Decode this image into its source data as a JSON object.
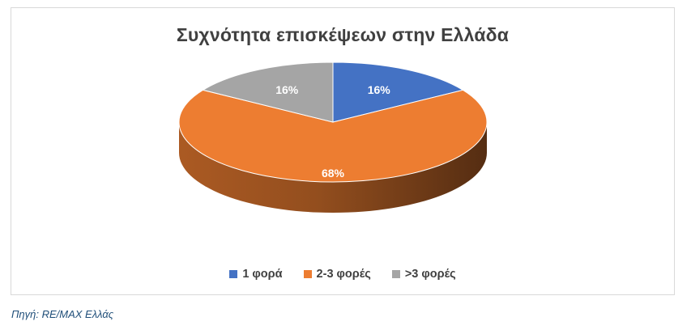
{
  "chart_data": {
    "type": "pie",
    "title": "Συχνότητα επισκέψεων στην Ελλάδα",
    "categories": [
      "1 φορά",
      "2-3 φορές",
      ">3 φορές"
    ],
    "values": [
      16,
      68,
      16
    ],
    "labels": [
      "16%",
      "68%",
      "16%"
    ],
    "colors": [
      "#4472c4",
      "#ed7d31",
      "#a5a5a5"
    ],
    "style": "3d",
    "legend_position": "bottom"
  },
  "source": "Πηγή: RE/MAX Ελλάς"
}
